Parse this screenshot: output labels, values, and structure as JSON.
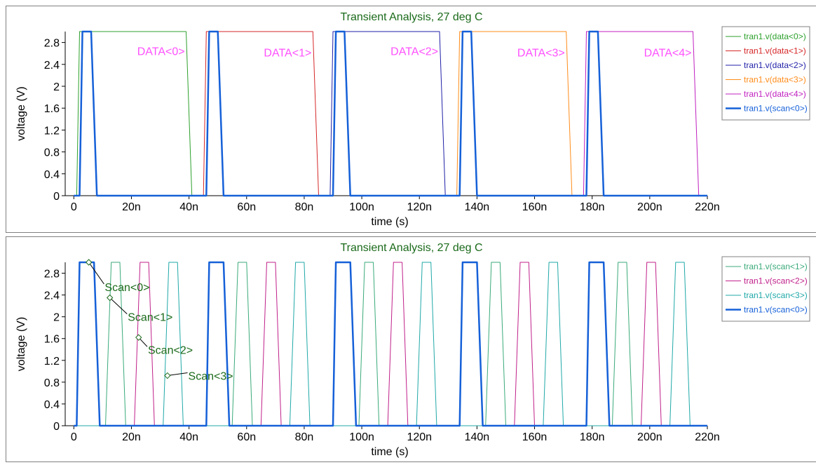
{
  "chart_data": [
    {
      "type": "line",
      "title": "Transient Analysis, 27 deg C",
      "xlabel": "time (s)",
      "ylabel": "voltage (V)",
      "xlim": [
        -3,
        220
      ],
      "ylim": [
        0,
        3
      ],
      "xticks": [
        0,
        20,
        40,
        60,
        80,
        100,
        120,
        140,
        160,
        180,
        200,
        220
      ],
      "xtick_labels": [
        "0",
        "20n",
        "40n",
        "60n",
        "80n",
        "100n",
        "120n",
        "140n",
        "160n",
        "180n",
        "200n",
        "220n"
      ],
      "yticks": [
        0,
        0.4,
        0.8,
        1.2,
        1.6,
        2.0,
        2.4,
        2.8
      ],
      "ytick_labels": [
        "0",
        "0.4",
        "0.8",
        "1.2",
        "1.6",
        "2",
        "2.4",
        "2.8"
      ],
      "legend_position": "right",
      "series": [
        {
          "name": "tran1.v(data<0>)",
          "color": "#2ca02c",
          "width": 1,
          "x": [
            0,
            1,
            2,
            39,
            41,
            43
          ],
          "y": [
            0,
            0,
            3,
            3,
            0,
            0
          ]
        },
        {
          "name": "tran1.v(data<1>)",
          "color": "#d62728",
          "width": 1,
          "x": [
            43,
            45,
            46,
            83,
            85,
            87
          ],
          "y": [
            0,
            0,
            3,
            3,
            0,
            0
          ]
        },
        {
          "name": "tran1.v(data<2>)",
          "color": "#1f1fa8",
          "width": 1,
          "x": [
            87,
            89,
            90,
            127,
            129,
            131
          ],
          "y": [
            0,
            0,
            3,
            3,
            0,
            0
          ]
        },
        {
          "name": "tran1.v(data<3>)",
          "color": "#ff8c1a",
          "width": 1,
          "x": [
            131,
            133,
            134,
            171,
            173,
            175
          ],
          "y": [
            0,
            0,
            3,
            3,
            0,
            0
          ]
        },
        {
          "name": "tran1.v(data<4>)",
          "color": "#c020c0",
          "width": 1,
          "x": [
            175,
            177,
            178,
            215,
            217,
            219
          ],
          "y": [
            0,
            0,
            3,
            3,
            0,
            0
          ]
        },
        {
          "name": "tran1.v(scan<0>)",
          "color": "#1560d8",
          "width": 2.5,
          "x": [
            0,
            2,
            3,
            6,
            8,
            45,
            46,
            47,
            50,
            52,
            89,
            90,
            91,
            94,
            96,
            133,
            134,
            135,
            138,
            140,
            177,
            178,
            179,
            182,
            184,
            220
          ],
          "y": [
            0,
            0,
            3,
            3,
            0,
            0,
            0,
            3,
            3,
            0,
            0,
            0,
            3,
            3,
            0,
            0,
            0,
            3,
            3,
            0,
            0,
            0,
            3,
            3,
            0,
            0
          ]
        }
      ],
      "annotations": [
        {
          "text": "DATA<0>",
          "x": 22,
          "y": 2.65
        },
        {
          "text": "DATA<1>",
          "x": 66,
          "y": 2.62
        },
        {
          "text": "DATA<2>",
          "x": 110,
          "y": 2.65
        },
        {
          "text": "DATA<3>",
          "x": 154,
          "y": 2.62
        },
        {
          "text": "DATA<4>",
          "x": 198,
          "y": 2.62
        }
      ],
      "annotation_color": "#ff50ff"
    },
    {
      "type": "line",
      "title": "Transient Analysis, 27 deg C",
      "xlabel": "time (s)",
      "ylabel": "voltage (V)",
      "xlim": [
        -3,
        220
      ],
      "ylim": [
        0,
        3
      ],
      "xticks": [
        0,
        20,
        40,
        60,
        80,
        100,
        120,
        140,
        160,
        180,
        200,
        220
      ],
      "xtick_labels": [
        "0",
        "20n",
        "40n",
        "60n",
        "80n",
        "100n",
        "120n",
        "140n",
        "160n",
        "180n",
        "200n",
        "220n"
      ],
      "yticks": [
        0,
        0.4,
        0.8,
        1.2,
        1.6,
        2.0,
        2.4,
        2.8
      ],
      "ytick_labels": [
        "0",
        "0.4",
        "0.8",
        "1.2",
        "1.6",
        "2",
        "2.4",
        "2.8"
      ],
      "legend_position": "right",
      "series": [
        {
          "name": "tran1.v(scan<1>)",
          "color": "#3aaa7a",
          "width": 1,
          "x": [
            0,
            11,
            13,
            16,
            18,
            55,
            57,
            60,
            62,
            99,
            101,
            104,
            106,
            143,
            145,
            148,
            150,
            187,
            189,
            192,
            194,
            220
          ],
          "y": [
            0,
            0,
            3,
            3,
            0,
            0,
            3,
            3,
            0,
            0,
            3,
            3,
            0,
            0,
            3,
            3,
            0,
            0,
            3,
            3,
            0,
            0
          ]
        },
        {
          "name": "tran1.v(scan<2>)",
          "color": "#c0208a",
          "width": 1,
          "x": [
            0,
            21,
            23,
            26,
            28,
            65,
            67,
            70,
            72,
            109,
            111,
            114,
            116,
            153,
            155,
            158,
            160,
            197,
            199,
            202,
            204,
            220
          ],
          "y": [
            0,
            0,
            3,
            3,
            0,
            0,
            3,
            3,
            0,
            0,
            3,
            3,
            0,
            0,
            3,
            3,
            0,
            0,
            3,
            3,
            0,
            0
          ]
        },
        {
          "name": "tran1.v(scan<3>)",
          "color": "#20a8a8",
          "width": 1,
          "x": [
            0,
            31,
            33,
            36,
            38,
            75,
            77,
            80,
            82,
            119,
            121,
            124,
            126,
            163,
            165,
            168,
            170,
            207,
            209,
            212,
            214,
            220
          ],
          "y": [
            0,
            0,
            3,
            3,
            0,
            0,
            3,
            3,
            0,
            0,
            3,
            3,
            0,
            0,
            3,
            3,
            0,
            0,
            3,
            3,
            0,
            0
          ]
        },
        {
          "name": "tran1.v(scan<0>)",
          "color": "#1560d8",
          "width": 2.5,
          "x": [
            0,
            1,
            2,
            7,
            9,
            45,
            46,
            47,
            52,
            54,
            89,
            90,
            91,
            96,
            98,
            133,
            134,
            135,
            140,
            142,
            177,
            178,
            179,
            184,
            186,
            220
          ],
          "y": [
            0,
            0,
            3,
            3,
            0,
            0,
            0,
            3,
            3,
            0,
            0,
            0,
            3,
            3,
            0,
            0,
            0,
            3,
            3,
            0,
            0,
            0,
            3,
            3,
            0,
            0
          ]
        }
      ],
      "annotations": [
        {
          "text": "Scan<0>",
          "x": 10,
          "y": 2.55,
          "point_x": 5.2,
          "point_y": 3.0
        },
        {
          "text": "Scan<1>",
          "x": 18,
          "y": 2.0,
          "point_x": 12.5,
          "point_y": 2.35
        },
        {
          "text": "Scan<2>",
          "x": 25,
          "y": 1.4,
          "point_x": 22.5,
          "point_y": 1.62
        },
        {
          "text": "Scan<3>",
          "x": 39,
          "y": 0.92,
          "point_x": 32.5,
          "point_y": 0.92
        }
      ],
      "annotation_color": "#1a6a1a"
    }
  ]
}
